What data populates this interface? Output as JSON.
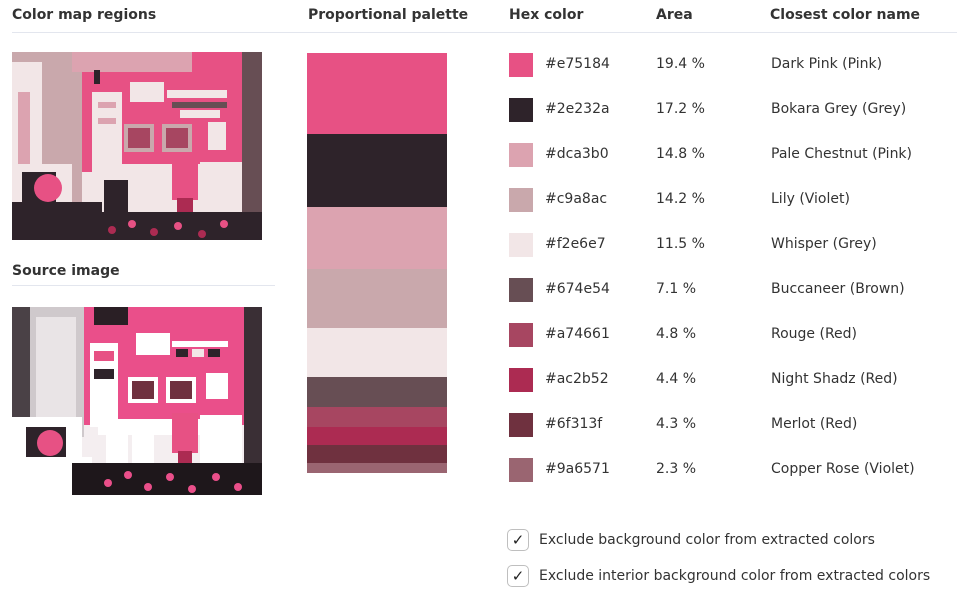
{
  "headings": {
    "color_map": "Color map regions",
    "palette": "Proportional palette",
    "hex": "Hex color",
    "area": "Area",
    "name": "Closest color name",
    "source": "Source image"
  },
  "colors": [
    {
      "hex": "#e75184",
      "area": "19.4 %",
      "area_value": 19.4,
      "name": "Dark Pink (Pink)"
    },
    {
      "hex": "#2e232a",
      "area": "17.2 %",
      "area_value": 17.2,
      "name": "Bokara Grey (Grey)"
    },
    {
      "hex": "#dca3b0",
      "area": "14.8 %",
      "area_value": 14.8,
      "name": "Pale Chestnut (Pink)"
    },
    {
      "hex": "#c9a8ac",
      "area": "14.2 %",
      "area_value": 14.2,
      "name": "Lily (Violet)"
    },
    {
      "hex": "#f2e6e7",
      "area": "11.5 %",
      "area_value": 11.5,
      "name": "Whisper (Grey)"
    },
    {
      "hex": "#674e54",
      "area": "7.1 %",
      "area_value": 7.1,
      "name": "Buccaneer (Brown)"
    },
    {
      "hex": "#a74661",
      "area": "4.8 %",
      "area_value": 4.8,
      "name": "Rouge (Red)"
    },
    {
      "hex": "#ac2b52",
      "area": "4.4 %",
      "area_value": 4.4,
      "name": "Night Shadz (Red)"
    },
    {
      "hex": "#6f313f",
      "area": "4.3 %",
      "area_value": 4.3,
      "name": "Merlot (Red)"
    },
    {
      "hex": "#9a6571",
      "area": "2.3 %",
      "area_value": 2.3,
      "name": "Copper Rose (Violet)"
    }
  ],
  "options": [
    {
      "label": "Exclude background color from extracted colors",
      "checked": true,
      "icon": "checkmark-icon"
    },
    {
      "label": "Exclude interior background color from extracted colors",
      "checked": true,
      "icon": "checkmark-icon"
    }
  ],
  "check_glyph": "✓"
}
